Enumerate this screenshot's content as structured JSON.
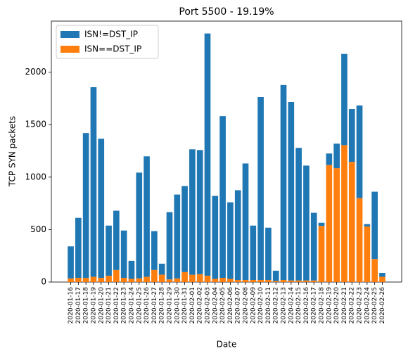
{
  "chart_data": {
    "type": "stacked-bar",
    "title": "Port 5500 - 19.19%",
    "x_label": "Date",
    "y_label": "TCP SYN packets",
    "categories": [
      "2020-01-16",
      "2020-01-17",
      "2020-01-18",
      "2020-01-19",
      "2020-01-20",
      "2020-01-21",
      "2020-01-22",
      "2020-01-23",
      "2020-01-24",
      "2020-01-25",
      "2020-01-26",
      "2020-01-27",
      "2020-01-28",
      "2020-01-29",
      "2020-01-30",
      "2020-01-31",
      "2020-02-01",
      "2020-02-02",
      "2020-02-03",
      "2020-02-04",
      "2020-02-05",
      "2020-02-06",
      "2020-02-07",
      "2020-02-08",
      "2020-02-09",
      "2020-02-10",
      "2020-02-11",
      "2020-02-12",
      "2020-02-13",
      "2020-02-14",
      "2020-02-15",
      "2020-02-16",
      "2020-02-17",
      "2020-02-18",
      "2020-02-19",
      "2020-02-20",
      "2020-02-21",
      "2020-02-22",
      "2020-02-23",
      "2020-02-24",
      "2020-02-25",
      "2020-02-26"
    ],
    "series": [
      {
        "name": "ISN!=DST_IP",
        "color": "#1f77b4",
        "values": [
          305,
          572,
          1380,
          1807,
          1326,
          478,
          565,
          451,
          172,
          1008,
          1148,
          370,
          105,
          641,
          799,
          820,
          1195,
          1183,
          2309,
          791,
          1541,
          730,
          855,
          1110,
          518,
          1743,
          498,
          98,
          1858,
          1701,
          1264,
          1095,
          645,
          30,
          110,
          234,
          869,
          504,
          883,
          22,
          641,
          37
        ]
      },
      {
        "name": "ISN==DST_IP",
        "color": "#ff7f0e",
        "values": [
          35,
          40,
          40,
          50,
          40,
          60,
          115,
          40,
          30,
          35,
          50,
          115,
          70,
          25,
          35,
          95,
          70,
          75,
          60,
          30,
          40,
          30,
          20,
          20,
          20,
          20,
          20,
          10,
          20,
          15,
          15,
          15,
          15,
          535,
          1115,
          1085,
          1305,
          1145,
          800,
          530,
          220,
          50
        ]
      }
    ],
    "ylim": [
      0,
      2487
    ],
    "yticks": [
      0,
      500,
      1000,
      1500,
      2000
    ],
    "legend": "upper left"
  }
}
